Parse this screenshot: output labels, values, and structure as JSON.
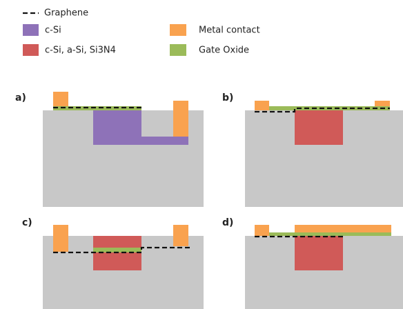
{
  "legend": {
    "items": [
      "Graphene",
      "c-Si",
      "Metal contact",
      "c-Si, a-Si, Si3N4",
      "Gate Oxide"
    ]
  },
  "panels": {
    "labels": [
      "a)",
      "b)",
      "c)",
      "d)"
    ]
  }
}
